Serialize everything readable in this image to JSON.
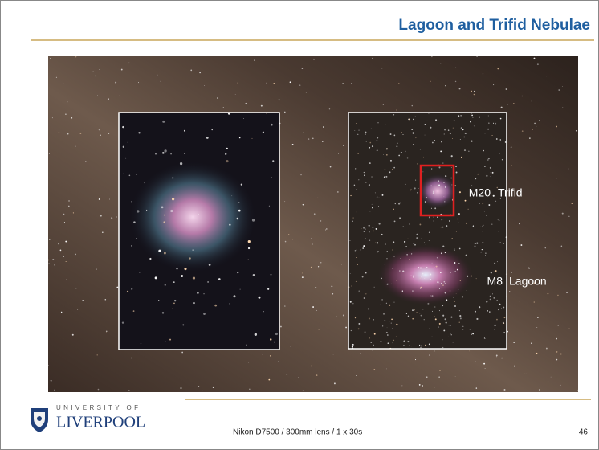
{
  "header": {
    "title": "Lagoon and Trifid Nebulae"
  },
  "photo": {
    "labels": [
      {
        "code": "M20",
        "name": "Trifid"
      },
      {
        "code": "M8",
        "name": "Lagoon"
      }
    ]
  },
  "logo": {
    "line1": "UNIVERSITY OF",
    "line2": "LIVERPOOL"
  },
  "footer": {
    "caption": "Nikon D7500 / 300mm lens / 1 x 30s",
    "page_number": "46"
  }
}
